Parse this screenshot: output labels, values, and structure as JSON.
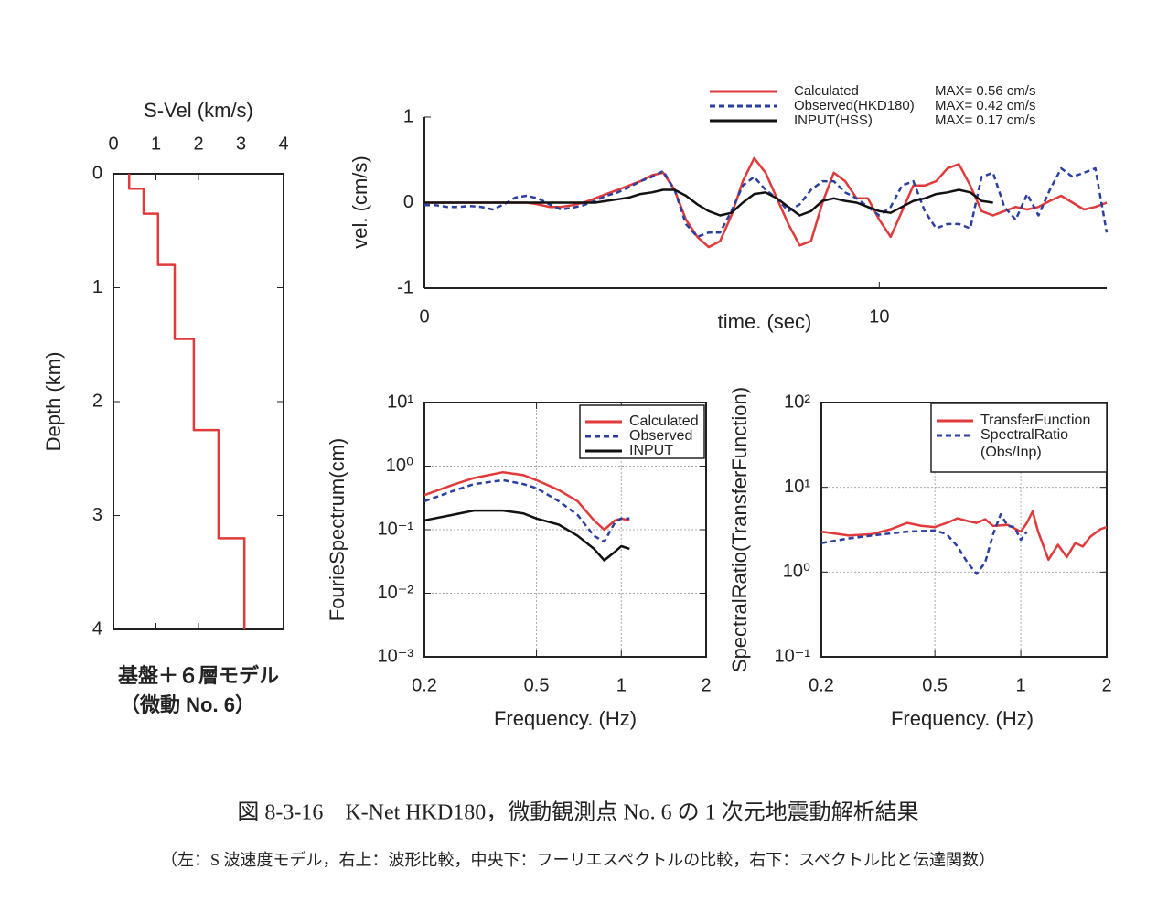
{
  "chart_data": [
    {
      "type": "line",
      "x_label": "S-Vel (km/s)",
      "y_label": "Depth (km)",
      "xaxis_position": "top",
      "y_inverted": true,
      "xlim": [
        0,
        4
      ],
      "xticks": [
        0,
        1,
        2,
        3,
        4
      ],
      "ylim": [
        0,
        4
      ],
      "yticks": [
        0,
        1,
        2,
        3,
        4
      ],
      "x": [
        0.37,
        0.37,
        0.71,
        0.71,
        1.05,
        1.05,
        1.44,
        1.44,
        1.89,
        1.89,
        2.47,
        2.47,
        3.08,
        3.08
      ],
      "series": [
        {
          "color": "#e03a3a",
          "values": [
            0,
            0.13,
            0.13,
            0.35,
            0.35,
            0.8,
            0.8,
            1.45,
            1.45,
            2.25,
            2.25,
            3.2,
            3.2,
            4
          ]
        }
      ],
      "caption": [
        "基盤＋６層モデル",
        "（微動 No. 6）"
      ]
    },
    {
      "type": "line",
      "x_label": "time. (sec)",
      "y_label": "vel. (cm/s)",
      "xlim": [
        0,
        15
      ],
      "xticks": [
        0,
        10
      ],
      "ylim": [
        -1,
        1
      ],
      "yticks": [
        -1,
        0,
        1
      ],
      "legend": "upper right",
      "x": [
        0,
        0.25,
        0.5,
        0.75,
        1,
        1.25,
        1.5,
        1.75,
        2,
        2.25,
        2.5,
        2.75,
        3,
        3.25,
        3.5,
        3.75,
        4,
        4.25,
        4.5,
        4.75,
        5,
        5.25,
        5.5,
        5.75,
        6,
        6.25,
        6.5,
        6.75,
        7,
        7.25,
        7.5,
        7.75,
        8,
        8.25,
        8.5,
        8.75,
        9,
        9.25,
        9.5,
        9.75,
        10,
        10.25,
        10.5,
        10.75,
        11,
        11.25,
        11.5,
        11.75,
        12,
        12.25,
        12.5,
        12.75,
        13,
        13.25,
        13.5,
        13.75,
        14,
        14.25,
        14.5,
        14.75,
        15
      ],
      "series": [
        {
          "name": "Calculated",
          "max_label": "MAX= 0.56 cm/s",
          "color": "#e03a3a",
          "dash": false,
          "values": [
            0,
            0,
            0,
            0,
            0,
            0,
            0,
            0,
            0,
            0,
            -0.02,
            -0.05,
            -0.05,
            -0.03,
            0,
            0.05,
            0.1,
            0.15,
            0.2,
            0.25,
            0.32,
            0.35,
            0.15,
            -0.2,
            -0.4,
            -0.52,
            -0.45,
            -0.15,
            0.25,
            0.52,
            0.35,
            0.05,
            -0.25,
            -0.5,
            -0.45,
            0,
            0.35,
            0.25,
            0.05,
            0.05,
            -0.2,
            -0.4,
            -0.1,
            0.2,
            0.2,
            0.25,
            0.4,
            0.45,
            0.2,
            -0.1,
            -0.15,
            -0.1,
            -0.05,
            -0.08,
            -0.05,
            0.02,
            0.08,
            0,
            -0.08,
            -0.05,
            0
          ]
        },
        {
          "name": "Observed(HKD180)",
          "max_label": "MAX= 0.42 cm/s",
          "color": "#2a3f9e",
          "dash": true,
          "values": [
            -0.03,
            -0.03,
            -0.05,
            -0.05,
            -0.04,
            -0.05,
            -0.08,
            -0.02,
            0.06,
            0.08,
            0.05,
            -0.02,
            -0.08,
            -0.06,
            -0.03,
            0.02,
            0.08,
            0.12,
            0.18,
            0.25,
            0.3,
            0.37,
            0.15,
            -0.25,
            -0.4,
            -0.35,
            -0.35,
            -0.1,
            0.2,
            0.3,
            0.15,
            0.05,
            -0.1,
            -0.02,
            0.15,
            0.25,
            0.25,
            0.12,
            0.05,
            -0.05,
            -0.15,
            -0.05,
            0.2,
            0.25,
            -0.1,
            -0.3,
            -0.25,
            -0.25,
            -0.3,
            0.3,
            0.35,
            -0.05,
            -0.2,
            0.1,
            -0.15,
            0.15,
            0.4,
            0.3,
            0.35,
            0.4,
            -0.35
          ]
        },
        {
          "name": "INPUT(HSS)",
          "max_label": "MAX= 0.17 cm/s",
          "color": "#111111",
          "dash": false,
          "values": [
            0,
            0,
            0,
            0,
            0,
            0,
            0,
            0,
            0,
            0,
            0,
            0,
            0,
            0,
            0,
            0,
            0.02,
            0.04,
            0.06,
            0.1,
            0.12,
            0.15,
            0.15,
            0.08,
            -0.02,
            -0.1,
            -0.15,
            -0.12,
            0,
            0.1,
            0.12,
            0.05,
            -0.05,
            -0.15,
            -0.1,
            0.02,
            0.05,
            0.02,
            0,
            -0.05,
            -0.1,
            -0.12,
            -0.05,
            0.02,
            0.05,
            0.1,
            0.12,
            0.15,
            0.12,
            0.02,
            0,
            null,
            null,
            null,
            null,
            null,
            null,
            null,
            null,
            null,
            null
          ]
        }
      ]
    },
    {
      "type": "line",
      "x_label": "Frequency. (Hz)",
      "y_label": "FourieSpectrum(cm)",
      "xscale": "log",
      "yscale": "log",
      "grid": true,
      "legend": "upper right",
      "xlim": [
        0.2,
        2
      ],
      "xticks": [
        0.2,
        0.5,
        1,
        2
      ],
      "ylim": [
        0.001,
        10
      ],
      "yticks": [
        {
          "value": 0.001,
          "label": "10⁻³"
        },
        {
          "value": 0.01,
          "label": "10⁻²"
        },
        {
          "value": 0.1,
          "label": "10⁻¹"
        },
        {
          "value": 1,
          "label": "10⁰"
        },
        {
          "value": 10,
          "label": "10¹"
        }
      ],
      "x": [
        0.2,
        0.25,
        0.3,
        0.38,
        0.45,
        0.5,
        0.6,
        0.7,
        0.8,
        0.87,
        0.95,
        1.0,
        1.07
      ],
      "series": [
        {
          "name": "Calculated",
          "color": "#e03a3a",
          "dash": false,
          "values": [
            0.35,
            0.5,
            0.65,
            0.8,
            0.72,
            0.6,
            0.42,
            0.28,
            0.14,
            0.1,
            0.14,
            0.15,
            0.14
          ]
        },
        {
          "name": "Observed",
          "color": "#2a3f9e",
          "dash": true,
          "values": [
            0.28,
            0.4,
            0.52,
            0.6,
            0.52,
            0.45,
            0.28,
            0.17,
            0.08,
            0.065,
            0.13,
            0.15,
            0.15
          ]
        },
        {
          "name": "INPUT",
          "color": "#111111",
          "dash": false,
          "values": [
            0.14,
            0.17,
            0.2,
            0.2,
            0.18,
            0.15,
            0.12,
            0.08,
            0.05,
            0.033,
            0.045,
            0.055,
            0.05
          ]
        }
      ]
    },
    {
      "type": "line",
      "x_label": "Frequency. (Hz)",
      "y_label": "SpectralRatio(TransferFunction)",
      "xscale": "log",
      "yscale": "log",
      "grid": true,
      "legend": "upper right",
      "xlim": [
        0.2,
        2
      ],
      "xticks": [
        0.2,
        0.5,
        1,
        2
      ],
      "ylim": [
        0.1,
        100
      ],
      "yticks": [
        {
          "value": 0.1,
          "label": "10⁻¹"
        },
        {
          "value": 1,
          "label": "10⁰"
        },
        {
          "value": 10,
          "label": "10¹"
        },
        {
          "value": 100,
          "label": "10²"
        }
      ],
      "series": [
        {
          "name": "TransferFunction",
          "color": "#e03a3a",
          "dash": false,
          "x": [
            0.2,
            0.25,
            0.3,
            0.35,
            0.4,
            0.45,
            0.5,
            0.55,
            0.6,
            0.65,
            0.7,
            0.75,
            0.8,
            0.9,
            1.0,
            1.05,
            1.1,
            1.15,
            1.25,
            1.35,
            1.45,
            1.55,
            1.65,
            1.75,
            1.9,
            2.0
          ],
          "values": [
            3.0,
            2.7,
            2.8,
            3.2,
            3.8,
            3.5,
            3.4,
            3.8,
            4.3,
            4.0,
            3.8,
            4.2,
            3.5,
            3.6,
            3.0,
            3.8,
            5.2,
            3.0,
            1.4,
            2.1,
            1.5,
            2.2,
            2.0,
            2.6,
            3.2,
            3.4
          ]
        },
        {
          "name": "SpectralRatio\n(Obs/Inp)",
          "color": "#2a3f9e",
          "dash": true,
          "x": [
            0.2,
            0.25,
            0.3,
            0.4,
            0.5,
            0.55,
            0.6,
            0.65,
            0.7,
            0.75,
            0.8,
            0.85,
            0.9,
            0.95,
            1.0,
            1.05
          ],
          "values": [
            2.2,
            2.5,
            2.7,
            3.0,
            3.1,
            2.8,
            2.0,
            1.3,
            0.95,
            1.3,
            2.8,
            4.8,
            3.5,
            3.4,
            2.4,
            3.0
          ]
        }
      ]
    }
  ],
  "figure_caption": "図 8-3-16　K-Net HKD180，微動観測点 No. 6 の 1 次元地震動解析結果",
  "figure_note": "（左：S 波速度モデル，右上：波形比較，中央下：フーリエスペクトルの比較，右下：スペクトル比と伝達関数）"
}
